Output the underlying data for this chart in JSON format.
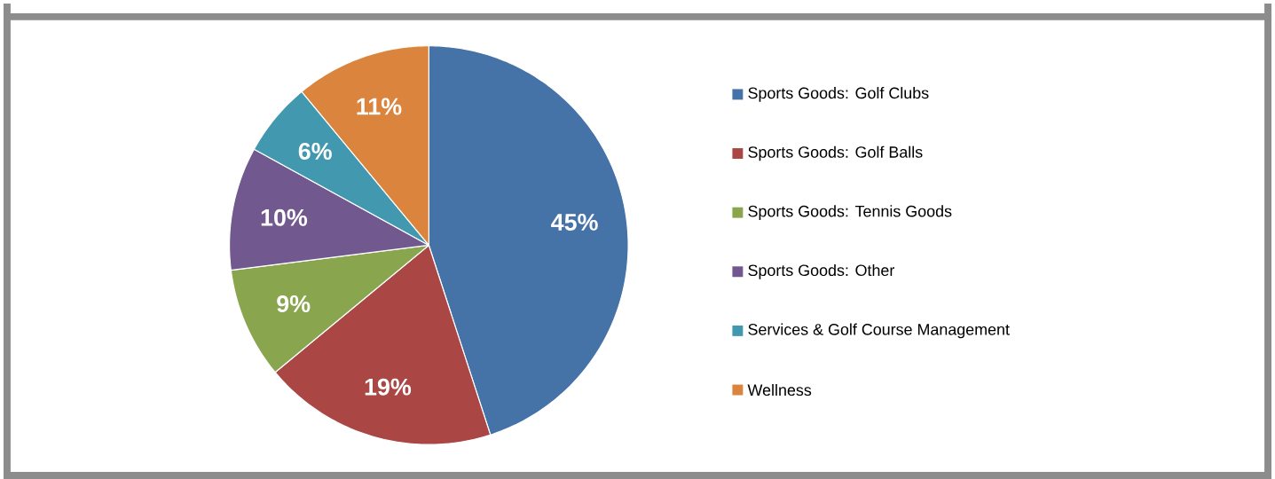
{
  "chart_data": {
    "type": "pie",
    "categories": [
      "Sports Goods: Golf Clubs",
      "Sports Goods: Golf Balls",
      "Sports Goods: Tennis Goods",
      "Sports Goods: Other",
      "Services & Golf Course Management",
      "Wellness"
    ],
    "values": [
      45,
      19,
      9,
      10,
      6,
      11
    ],
    "colors": [
      "#4572a7",
      "#aa4643",
      "#89a54e",
      "#71588f",
      "#4198af",
      "#db843d"
    ],
    "value_labels": [
      "45%",
      "19%",
      "9%",
      "10%",
      "6%",
      "11%"
    ],
    "legend": "right"
  }
}
